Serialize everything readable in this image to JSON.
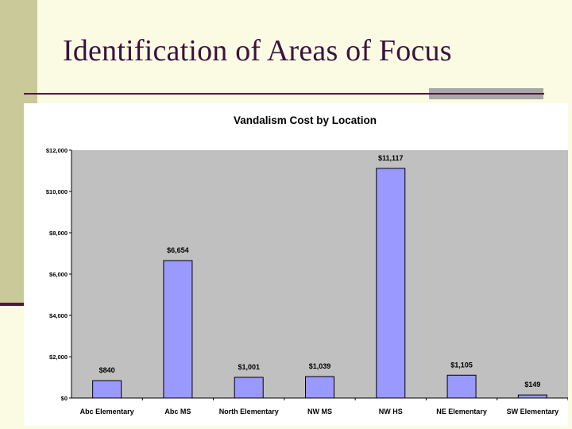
{
  "slide": {
    "title": "Identification of Areas of Focus"
  },
  "colors": {
    "background": "#fbfbe3",
    "left_bar": "#c9c99a",
    "rule": "#4b1a3a",
    "title_text": "#3b1240",
    "plot_area": "#c0c0c0",
    "bar_fill": "#9999ff"
  },
  "chart_data": {
    "type": "bar",
    "title": "Vandalism Cost by Location",
    "xlabel": "",
    "ylabel": "",
    "categories": [
      "Abc Elementary",
      "Abc MS",
      "North Elementary",
      "NW MS",
      "NW HS",
      "NE Elementary",
      "SW Elementary"
    ],
    "values": [
      840,
      6654,
      1001,
      1039,
      11117,
      1105,
      149
    ],
    "data_labels": [
      "$840",
      "$6,654",
      "$1,001",
      "$1,039",
      "$11,117",
      "$1,105",
      "$149"
    ],
    "ylim": [
      0,
      12000
    ],
    "yticks": [
      0,
      2000,
      4000,
      6000,
      8000,
      10000,
      12000
    ],
    "ytick_labels": [
      "$0",
      "$2,000",
      "$4,000",
      "$6,000",
      "$8,000",
      "$10,000",
      "$12,000"
    ],
    "grid": false,
    "legend": "none"
  }
}
